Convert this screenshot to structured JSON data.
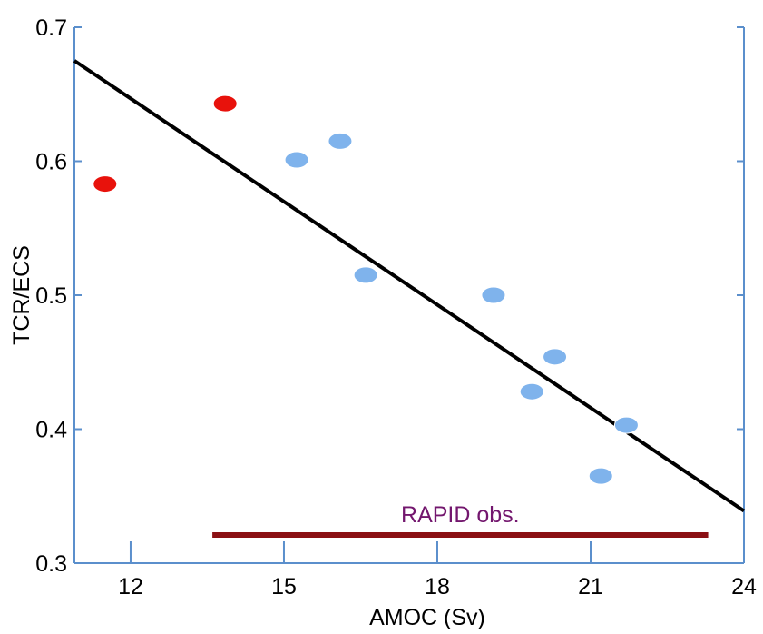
{
  "chart_data": {
    "type": "scatter",
    "title": "",
    "xlabel": "AMOC (Sv)",
    "ylabel": "TCR/ECS",
    "xlim": [
      10.9,
      24
    ],
    "ylim": [
      0.3,
      0.7
    ],
    "xticks": [
      12,
      15,
      18,
      21,
      24
    ],
    "xtick_labels": [
      "12",
      "15",
      "18",
      "21",
      "24"
    ],
    "yticks": [
      0.3,
      0.4,
      0.5,
      0.6,
      0.7
    ],
    "ytick_labels": [
      "0.3",
      "0.4",
      "0.5",
      "0.6",
      "0.7"
    ],
    "grid": false,
    "series": [
      {
        "color": "#e8120c",
        "points": [
          {
            "x": 11.5,
            "y": 0.583
          },
          {
            "x": 13.85,
            "y": 0.643
          }
        ]
      },
      {
        "color": "#7fb3ec",
        "points": [
          {
            "x": 15.25,
            "y": 0.601
          },
          {
            "x": 16.1,
            "y": 0.615
          },
          {
            "x": 16.6,
            "y": 0.515
          },
          {
            "x": 19.1,
            "y": 0.5
          },
          {
            "x": 19.85,
            "y": 0.428
          },
          {
            "x": 20.3,
            "y": 0.454
          },
          {
            "x": 21.2,
            "y": 0.365
          },
          {
            "x": 21.7,
            "y": 0.403
          }
        ]
      }
    ],
    "fit_line": {
      "x": [
        10.9,
        24
      ],
      "y": [
        0.675,
        0.339
      ],
      "color": "#000000"
    },
    "annotation": {
      "label": "RAPID obs.",
      "x_range": [
        13.6,
        23.3
      ],
      "y": 0.321,
      "line_color": "#8b1014",
      "text_color": "#73176e"
    },
    "axis_color": "#5b8fcc"
  }
}
